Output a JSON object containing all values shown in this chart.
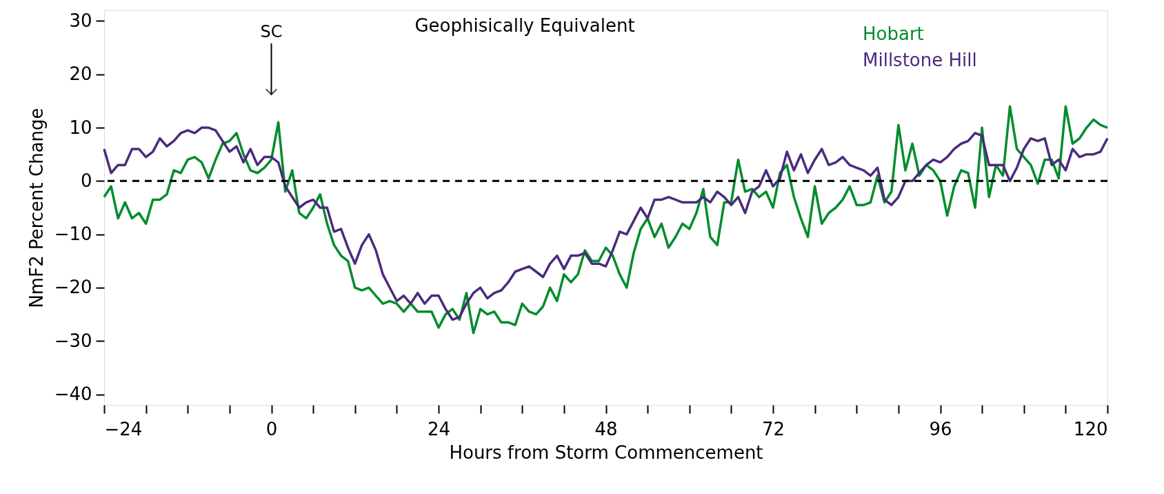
{
  "chart_data": {
    "type": "line",
    "title": "Geophisically Equivalent",
    "xlabel": "Hours from Storm Commencement",
    "ylabel": "NmF2 Percent Change",
    "x": [
      -24,
      -23,
      -22,
      -21,
      -20,
      -19,
      -18,
      -17,
      -16,
      -15,
      -14,
      -13,
      -12,
      -11,
      -10,
      -9,
      -8,
      -7,
      -6,
      -5,
      -4,
      -3,
      -2,
      -1,
      0,
      1,
      2,
      3,
      4,
      5,
      6,
      7,
      8,
      9,
      10,
      11,
      12,
      13,
      14,
      15,
      16,
      17,
      18,
      19,
      20,
      21,
      22,
      23,
      24,
      25,
      26,
      27,
      28,
      29,
      30,
      31,
      32,
      33,
      34,
      35,
      36,
      37,
      38,
      39,
      40,
      41,
      42,
      43,
      44,
      45,
      46,
      47,
      48,
      49,
      50,
      51,
      52,
      53,
      54,
      55,
      56,
      57,
      58,
      59,
      60,
      61,
      62,
      63,
      64,
      65,
      66,
      67,
      68,
      69,
      70,
      71,
      72,
      73,
      74,
      75,
      76,
      77,
      78,
      79,
      80,
      81,
      82,
      83,
      84,
      85,
      86,
      87,
      88,
      89,
      90,
      91,
      92,
      93,
      94,
      95,
      96,
      97,
      98,
      99,
      100,
      101,
      102,
      103,
      104,
      105,
      106,
      107,
      108,
      109,
      110,
      111,
      112,
      113,
      114,
      115,
      116,
      117,
      118,
      119,
      120
    ],
    "series": [
      {
        "name": "Hobart",
        "color": "#008c2c",
        "values": [
          -3,
          -1,
          -7,
          -4,
          -7,
          -6,
          -8,
          -3.5,
          -3.5,
          -2.5,
          2,
          1.5,
          4,
          4.5,
          3.5,
          0.5,
          4,
          7,
          7.5,
          9,
          5,
          2,
          1.5,
          2.5,
          4,
          11,
          -2,
          2,
          -6,
          -7,
          -5,
          -2.5,
          -8,
          -12,
          -14,
          -15,
          -20,
          -20.5,
          -20,
          -21.5,
          -23,
          -22.5,
          -23,
          -24.5,
          -23,
          -24.5,
          -24.5,
          -24.5,
          -27.5,
          -25,
          -24,
          -26,
          -21,
          -28.5,
          -24,
          -25,
          -24.5,
          -26.5,
          -26.5,
          -27,
          -23,
          -24.5,
          -25,
          -23.5,
          -20,
          -22.5,
          -17.5,
          -19,
          -17.5,
          -13,
          -15,
          -15,
          -12.5,
          -14,
          -17.5,
          -20,
          -13.5,
          -9,
          -7,
          -10.5,
          -8,
          -12.5,
          -10.5,
          -8,
          -9,
          -6,
          -1.5,
          -10.5,
          -12,
          -4,
          -4,
          4,
          -2,
          -1.5,
          -3,
          -2,
          -5,
          1.5,
          3,
          -3,
          -7,
          -10.5,
          -1,
          -8,
          -6,
          -5,
          -3.5,
          -1,
          -4.5,
          -4.5,
          -4,
          1,
          -4,
          -2,
          10.5,
          2,
          7,
          1,
          3,
          2,
          0,
          -6.5,
          -1,
          2,
          1.5,
          -5,
          10,
          -3,
          3,
          1,
          14,
          6,
          4.5,
          3,
          -0.5,
          4,
          4,
          0.5,
          14,
          7,
          8,
          10,
          11.5,
          10.5,
          10
        ]
      },
      {
        "name": "Millstone Hill",
        "color": "#4b2a7e",
        "values": [
          6,
          1.5,
          3,
          3,
          6,
          6,
          4.5,
          5.5,
          8,
          6.5,
          7.5,
          9,
          9.5,
          9,
          10,
          10,
          9.5,
          7.5,
          5.5,
          6.5,
          3.5,
          6,
          3,
          4.5,
          4.5,
          3.5,
          -1,
          -3,
          -5,
          -4,
          -3.5,
          -5,
          -5,
          -9.5,
          -9,
          -12.5,
          -15.5,
          -12,
          -10,
          -13,
          -17.5,
          -20,
          -22.5,
          -21.5,
          -23,
          -21,
          -23,
          -21.5,
          -21.5,
          -24,
          -26,
          -25.5,
          -23,
          -21,
          -20,
          -22,
          -21,
          -20.5,
          -19,
          -17,
          -16.5,
          -16,
          -17,
          -18,
          -15.5,
          -14,
          -16.5,
          -14,
          -14,
          -13.5,
          -15.5,
          -15.5,
          -16,
          -13,
          -9.5,
          -10,
          -7.5,
          -5,
          -7,
          -3.5,
          -3.5,
          -3,
          -3.5,
          -4,
          -4,
          -4,
          -3,
          -4,
          -2,
          -3,
          -4.5,
          -3,
          -6,
          -2,
          -1,
          2,
          -1,
          0.5,
          5.5,
          2,
          5,
          1.5,
          4,
          6,
          3,
          3.5,
          4.5,
          3,
          2.5,
          2,
          1,
          2.5,
          -3.5,
          -4.5,
          -3,
          0,
          0,
          1.5,
          3,
          4,
          3.5,
          4.5,
          6,
          7,
          7.5,
          9,
          8.5,
          3,
          3,
          3,
          0,
          2.5,
          6,
          8,
          7.5,
          8,
          3,
          4,
          2,
          6,
          4.5,
          5,
          5,
          5.5,
          8
        ]
      }
    ],
    "xlim": [
      -24,
      120
    ],
    "xticks": [
      -24,
      {
        "value": -18,
        "label": null
      },
      {
        "value": -12,
        "label": null
      },
      {
        "value": -6,
        "label": null
      },
      0,
      {
        "value": 6,
        "label": null
      },
      {
        "value": 12,
        "label": null
      },
      {
        "value": 18,
        "label": null
      },
      24,
      {
        "value": 30,
        "label": null
      },
      {
        "value": 36,
        "label": null
      },
      {
        "value": 42,
        "label": null
      },
      48,
      {
        "value": 54,
        "label": null
      },
      {
        "value": 60,
        "label": null
      },
      {
        "value": 66,
        "label": null
      },
      72,
      {
        "value": 78,
        "label": null
      },
      {
        "value": 84,
        "label": null
      },
      {
        "value": 90,
        "label": null
      },
      96,
      {
        "value": 102,
        "label": null
      },
      {
        "value": 108,
        "label": null
      },
      {
        "value": 114,
        "label": null
      },
      120
    ],
    "ylim": [
      -42,
      32
    ],
    "yticks": [
      -40,
      -30,
      -20,
      -10,
      0,
      10,
      20,
      30
    ],
    "ref_lines": [
      {
        "axis": "y",
        "value": 0,
        "color": "#000000",
        "line_style": "dashed"
      }
    ],
    "annotations": [
      "SC"
    ],
    "legend": "top right",
    "grid": false,
    "line_style": "solid",
    "marker": "none"
  }
}
